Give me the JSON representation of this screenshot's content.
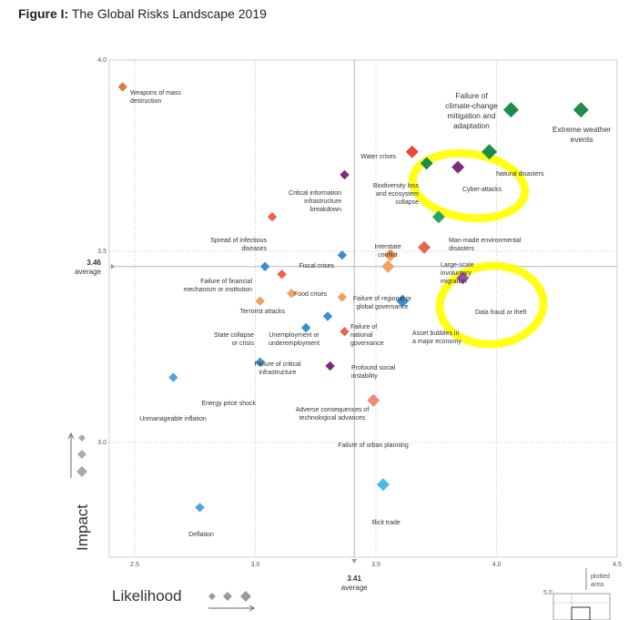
{
  "figure": {
    "label": "Figure I:",
    "title": "The Global Risks Landscape 2019"
  },
  "chart_data": {
    "type": "scatter",
    "xlabel": "Likelihood",
    "ylabel": "Impact",
    "xlim": [
      2.4,
      4.5
    ],
    "ylim": [
      2.7,
      4.0
    ],
    "x_ticks": [
      "2.5",
      "3.0",
      "3.5",
      "4.0",
      "4.5"
    ],
    "y_ticks": [
      "3.0",
      "3.5",
      "4.0"
    ],
    "average_x": {
      "value": "3.41",
      "label": "average"
    },
    "average_y": {
      "value": "3.46",
      "label": "average"
    },
    "legend_note": {
      "top": "plotted area",
      "value": "5.0"
    },
    "highlight_color": "#ffff00",
    "points": [
      {
        "name": "Weapons of mass destruction",
        "x": 2.45,
        "y": 3.93,
        "color": "#e07a3a",
        "size": 1
      },
      {
        "name": "Failure of climate-change mitigation and adaptation",
        "x": 4.06,
        "y": 3.87,
        "color": "#1e8c4a",
        "size": 3
      },
      {
        "name": "Extreme weather events",
        "x": 4.35,
        "y": 3.87,
        "color": "#1e8c4a",
        "size": 3
      },
      {
        "name": "Water crises",
        "x": 3.65,
        "y": 3.76,
        "color": "#e84a3c",
        "size": 2
      },
      {
        "name": "Natural disasters",
        "x": 3.97,
        "y": 3.76,
        "color": "#1e8c4a",
        "size": 3
      },
      {
        "name": "Biodiversity loss and ecosystem collapse",
        "x": 3.71,
        "y": 3.73,
        "color": "#1e8c4a",
        "size": 2
      },
      {
        "name": "Cyber-attacks",
        "x": 3.84,
        "y": 3.72,
        "color": "#7a2d7a",
        "size": 2
      },
      {
        "name": "Critical information infrastructure breakdown",
        "x": 3.37,
        "y": 3.7,
        "color": "#7a2d7a",
        "size": 1
      },
      {
        "name": "Man-made environmental disasters",
        "x": 3.76,
        "y": 3.59,
        "color": "#2aa36a",
        "size": 2
      },
      {
        "name": "Spread of infectious diseases",
        "x": 3.07,
        "y": 3.59,
        "color": "#e8644a",
        "size": 1
      },
      {
        "name": "Large-scale involuntary migration",
        "x": 3.7,
        "y": 3.51,
        "color": "#e8644a",
        "size": 2
      },
      {
        "name": "Interstate conflict",
        "x": 3.56,
        "y": 3.49,
        "color": "#f0a060",
        "size": 2
      },
      {
        "name": "Fiscal crises",
        "x": 3.36,
        "y": 3.49,
        "color": "#3a8fd0",
        "size": 1
      },
      {
        "name": "Failure of regional or global governance",
        "x": 3.55,
        "y": 3.46,
        "color": "#f0a060",
        "size": 2
      },
      {
        "name": "Failure of financial mechanism or institution",
        "x": 3.04,
        "y": 3.46,
        "color": "#3a8fd0",
        "size": 1
      },
      {
        "name": "Food crises",
        "x": 3.11,
        "y": 3.44,
        "color": "#e8644a",
        "size": 1
      },
      {
        "name": "Data fraud or theft",
        "x": 3.86,
        "y": 3.43,
        "color": "#9a4fa8",
        "size": 2
      },
      {
        "name": "Terrorist attacks",
        "x": 3.15,
        "y": 3.39,
        "color": "#f0a060",
        "size": 1
      },
      {
        "name": "Failure of national governance",
        "x": 3.36,
        "y": 3.38,
        "color": "#f0a060",
        "size": 1
      },
      {
        "name": "Asset bubbles in a major economy",
        "x": 3.61,
        "y": 3.37,
        "color": "#3a8fd0",
        "size": 2
      },
      {
        "name": "State collapse or crisis",
        "x": 3.02,
        "y": 3.37,
        "color": "#f0a060",
        "size": 1
      },
      {
        "name": "Unemployment or underemployment",
        "x": 3.3,
        "y": 3.33,
        "color": "#3a8fd0",
        "size": 1
      },
      {
        "name": "Failure of critical infrastructure",
        "x": 3.21,
        "y": 3.3,
        "color": "#3a8fd0",
        "size": 1
      },
      {
        "name": "Profound social instability",
        "x": 3.37,
        "y": 3.29,
        "color": "#e8644a",
        "size": 1
      },
      {
        "name": "Energy price shock",
        "x": 3.02,
        "y": 3.21,
        "color": "#3a8fd0",
        "size": 1
      },
      {
        "name": "Adverse consequences of technological advances",
        "x": 3.31,
        "y": 3.2,
        "color": "#7a2d7a",
        "size": 1
      },
      {
        "name": "Unmanageable inflation",
        "x": 2.66,
        "y": 3.17,
        "color": "#4aa6e0",
        "size": 1
      },
      {
        "name": "Failure of urban planning",
        "x": 3.49,
        "y": 3.11,
        "color": "#f08a7a",
        "size": 2
      },
      {
        "name": "Illicit trade",
        "x": 3.53,
        "y": 2.89,
        "color": "#4ab8e8",
        "size": 2
      },
      {
        "name": "Deflation",
        "x": 2.77,
        "y": 2.83,
        "color": "#4aa6e0",
        "size": 1
      }
    ]
  }
}
